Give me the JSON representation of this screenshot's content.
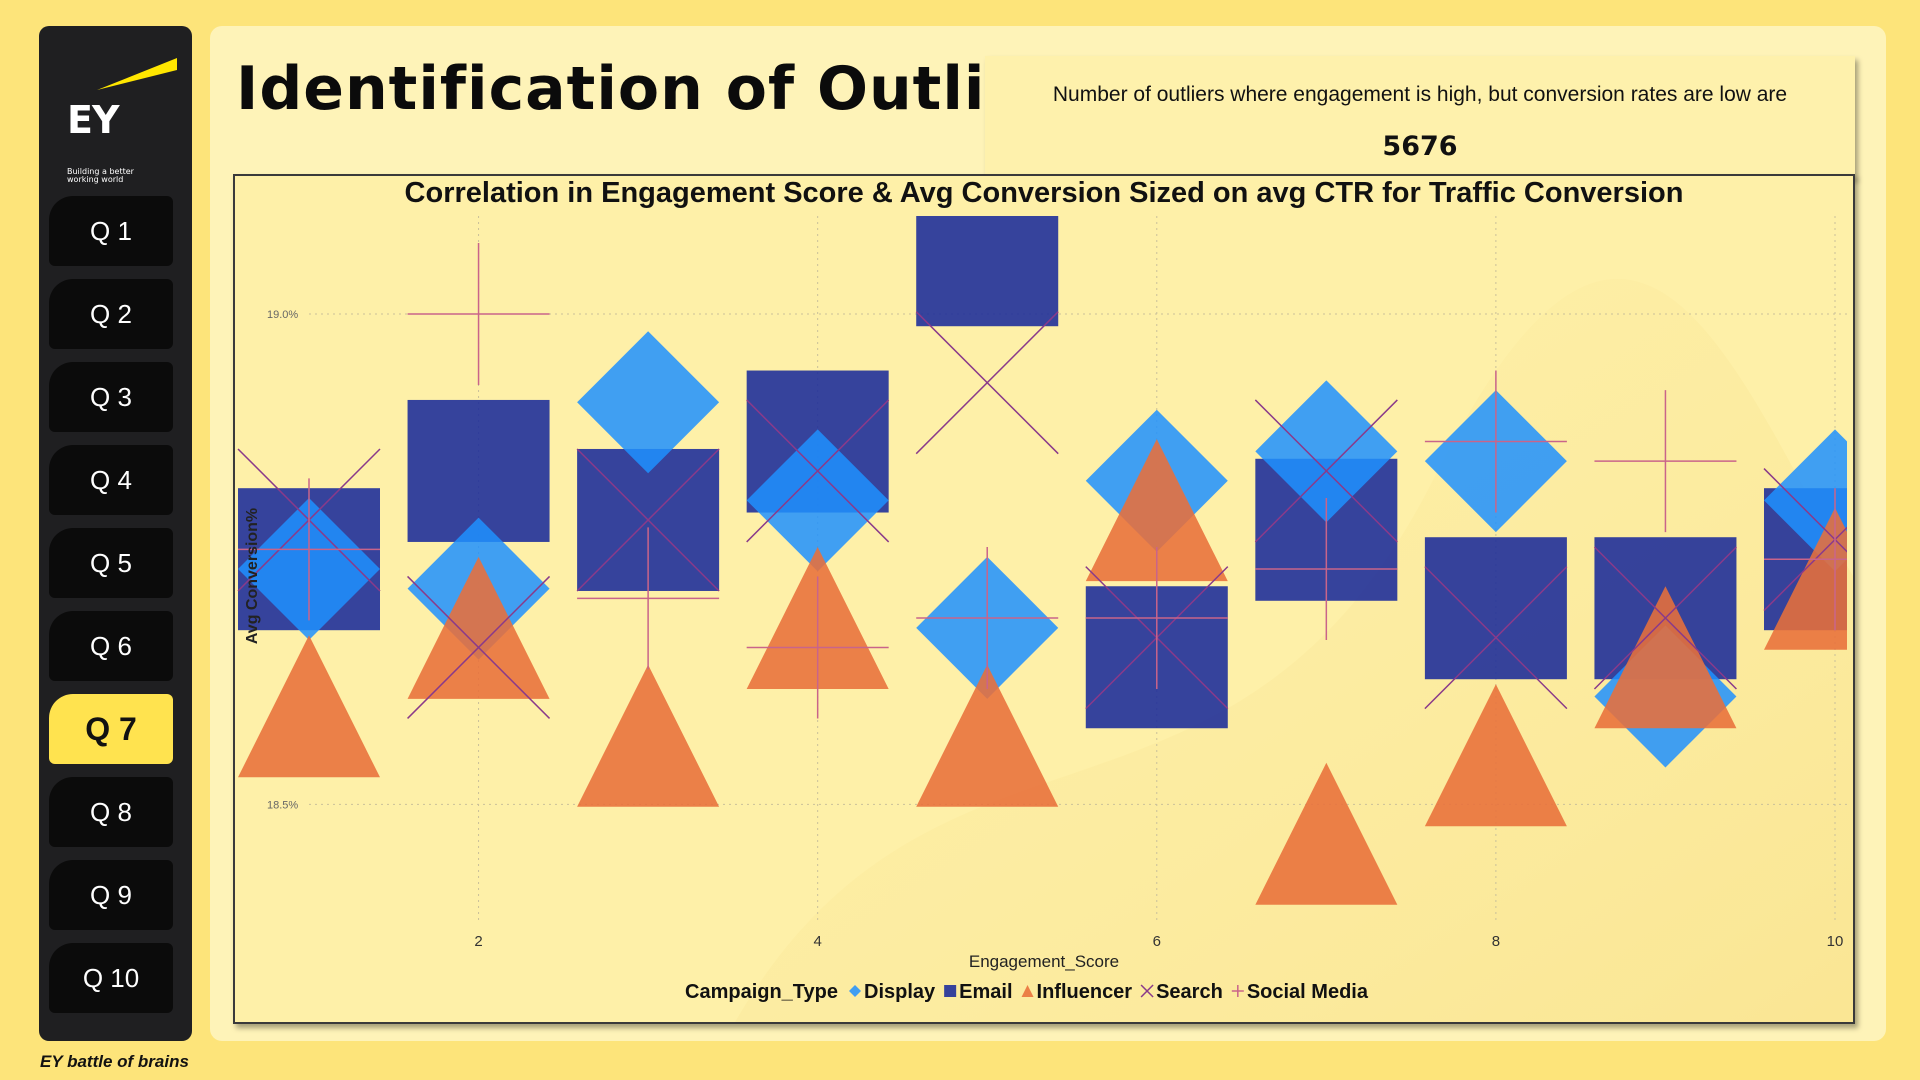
{
  "sidebar": {
    "logo": {
      "text": "EY",
      "tagline": "Building a better\nworking world"
    },
    "items": [
      {
        "label": "Q 1",
        "active": false
      },
      {
        "label": "Q 2",
        "active": false
      },
      {
        "label": "Q 3",
        "active": false
      },
      {
        "label": "Q 4",
        "active": false
      },
      {
        "label": "Q 5",
        "active": false
      },
      {
        "label": "Q 6",
        "active": false
      },
      {
        "label": "Q 7",
        "active": true
      },
      {
        "label": "Q 8",
        "active": false
      },
      {
        "label": "Q 9",
        "active": false
      },
      {
        "label": "Q 10",
        "active": false
      }
    ]
  },
  "footer": "EY battle of brains",
  "page_title": "Identification of Outliers",
  "kpi": {
    "label": "Number of outliers where engagement is high, but conversion rates are low are",
    "value": "5676"
  },
  "colors": {
    "background": "#fde47a",
    "accent": "#ffe34f",
    "Display": "#1e90ff",
    "Email": "#1a2a9a",
    "Influencer": "#e8703a",
    "Search": "#8a3a8a",
    "Social Media": "#c9648a"
  },
  "chart_data": {
    "type": "scatter",
    "title": "Correlation in Engagement Score & Avg Conversion Sized on avg CTR for Traffic Conversion",
    "xlabel": "Engagement_Score",
    "ylabel": "Avg Conversion%",
    "xticks": [
      "2",
      "4",
      "6",
      "8",
      "10"
    ],
    "yticks": [
      "19.0%",
      "18.5%"
    ],
    "xlim": [
      1,
      10
    ],
    "ylim": [
      18.38,
      19.1
    ],
    "grid": true,
    "legend_title": "Campaign_Type",
    "legend_position": "bottom",
    "series": [
      {
        "name": "Display",
        "marker": "diamond",
        "points": [
          [
            1,
            18.74
          ],
          [
            2,
            18.72
          ],
          [
            3,
            18.91
          ],
          [
            4,
            18.81
          ],
          [
            5,
            18.68
          ],
          [
            6,
            18.83
          ],
          [
            7,
            18.86
          ],
          [
            8,
            18.85
          ],
          [
            9,
            18.61
          ],
          [
            10,
            18.81
          ]
        ]
      },
      {
        "name": "Email",
        "marker": "square",
        "points": [
          [
            1,
            18.75
          ],
          [
            2,
            18.84
          ],
          [
            3,
            18.79
          ],
          [
            4,
            18.87
          ],
          [
            5,
            19.06
          ],
          [
            6,
            18.65
          ],
          [
            7,
            18.78
          ],
          [
            8,
            18.7
          ],
          [
            9,
            18.7
          ],
          [
            10,
            18.75
          ]
        ]
      },
      {
        "name": "Influencer",
        "marker": "triangle",
        "points": [
          [
            1,
            18.6
          ],
          [
            2,
            18.68
          ],
          [
            3,
            18.57
          ],
          [
            4,
            18.69
          ],
          [
            5,
            18.57
          ],
          [
            6,
            18.8
          ],
          [
            7,
            18.47
          ],
          [
            8,
            18.55
          ],
          [
            9,
            18.65
          ],
          [
            10,
            18.73
          ]
        ]
      },
      {
        "name": "Search",
        "marker": "x",
        "points": [
          [
            1,
            18.79
          ],
          [
            2,
            18.66
          ],
          [
            3,
            18.79
          ],
          [
            4,
            18.84
          ],
          [
            5,
            18.93
          ],
          [
            6,
            18.67
          ],
          [
            7,
            18.84
          ],
          [
            8,
            18.67
          ],
          [
            9,
            18.69
          ],
          [
            10,
            18.77
          ]
        ]
      },
      {
        "name": "Social Media",
        "marker": "plus",
        "points": [
          [
            1,
            18.76
          ],
          [
            2,
            19.0
          ],
          [
            3,
            18.71
          ],
          [
            4,
            18.66
          ],
          [
            5,
            18.69
          ],
          [
            6,
            18.69
          ],
          [
            7,
            18.74
          ],
          [
            8,
            18.87
          ],
          [
            9,
            18.85
          ],
          [
            10,
            18.75
          ]
        ]
      }
    ]
  }
}
